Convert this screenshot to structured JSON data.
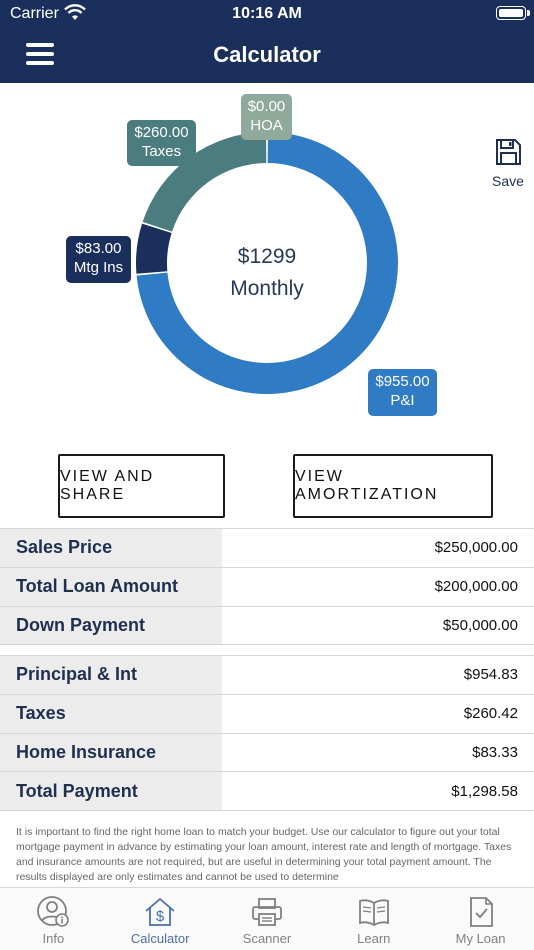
{
  "status_bar": {
    "carrier": "Carrier",
    "time": "10:16 AM"
  },
  "nav": {
    "title": "Calculator",
    "menu_icon": "hamburger-menu-icon"
  },
  "donut": {
    "center_amount": "$1299",
    "center_label": "Monthly",
    "segments": [
      {
        "name": "P&I",
        "value": 955.0,
        "amount_label": "$955.00",
        "color": "#2f7bc4"
      },
      {
        "name": "Mtg Ins",
        "value": 83.0,
        "amount_label": "$83.00",
        "color": "#1b2f5c"
      },
      {
        "name": "Taxes",
        "value": 260.0,
        "amount_label": "$260.00",
        "color": "#4b7c7f"
      },
      {
        "name": "HOA",
        "value": 0.0,
        "amount_label": "$0.00",
        "color": "#8fa99a"
      }
    ]
  },
  "save": {
    "label": "Save",
    "icon": "floppy-disk-icon"
  },
  "buttons": {
    "share": "VIEW AND SHARE",
    "amortization": "VIEW AMORTIZATION"
  },
  "loan_table": [
    {
      "label": "Sales Price",
      "value": "$250,000.00"
    },
    {
      "label": "Total Loan Amount",
      "value": "$200,000.00"
    },
    {
      "label": "Down Payment",
      "value": "$50,000.00"
    }
  ],
  "payment_table": [
    {
      "label": "Principal & Int",
      "value": "$954.83"
    },
    {
      "label": "Taxes",
      "value": "$260.42"
    },
    {
      "label": "Home Insurance",
      "value": "$83.33"
    },
    {
      "label": "Total Payment",
      "value": "$1,298.58"
    }
  ],
  "disclaimer": "It is important to find the right home loan to match your budget. Use our calculator to figure out your total mortgage payment in advance by estimating your loan amount, interest rate and length of mortgage. Taxes and insurance amounts are not required, but are useful in determining your total payment amount. The results displayed are only estimates and cannot be used to determine",
  "tabs": [
    {
      "label": "Info",
      "icon": "person-info-icon",
      "active": false
    },
    {
      "label": "Calculator",
      "icon": "house-dollar-icon",
      "active": true
    },
    {
      "label": "Scanner",
      "icon": "printer-icon",
      "active": false
    },
    {
      "label": "Learn",
      "icon": "book-icon",
      "active": false
    },
    {
      "label": "My Loan",
      "icon": "document-check-icon",
      "active": false
    }
  ]
}
